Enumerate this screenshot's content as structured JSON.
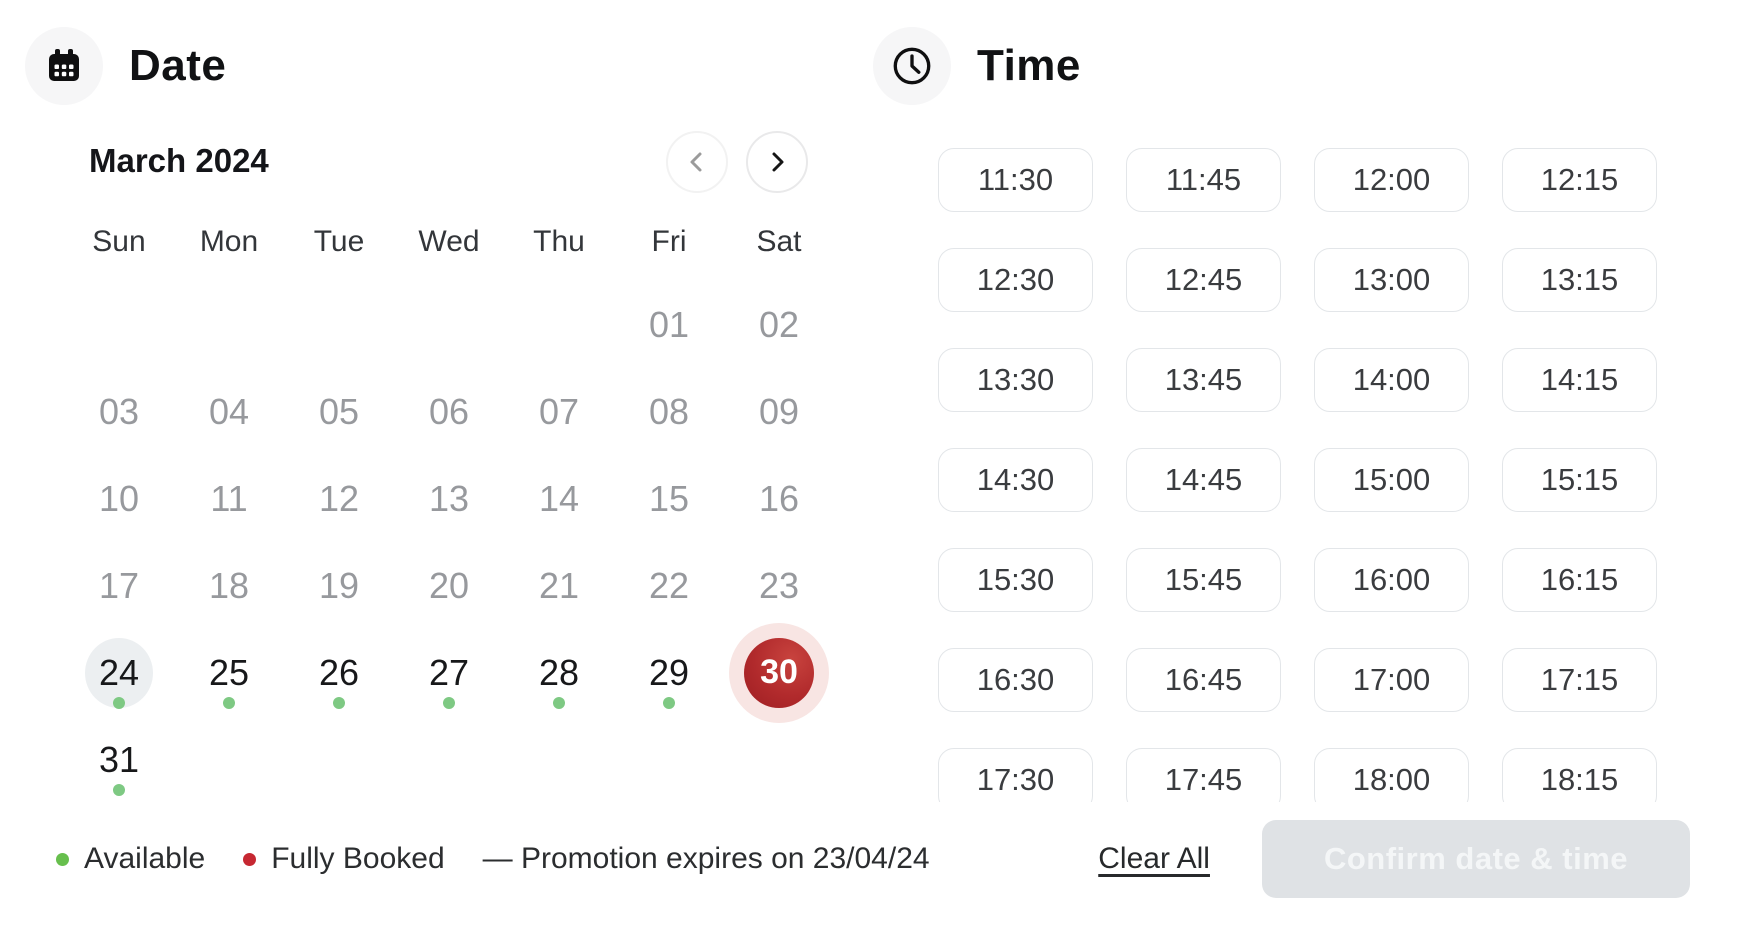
{
  "date_panel": {
    "title": "Date",
    "month_label": "March 2024",
    "weekdays": [
      "Sun",
      "Mon",
      "Tue",
      "Wed",
      "Thu",
      "Fri",
      "Sat"
    ],
    "cells": [
      {
        "day": "",
        "type": "empty"
      },
      {
        "day": "",
        "type": "empty"
      },
      {
        "day": "",
        "type": "empty"
      },
      {
        "day": "",
        "type": "empty"
      },
      {
        "day": "",
        "type": "empty"
      },
      {
        "day": "01",
        "type": "disabled"
      },
      {
        "day": "02",
        "type": "disabled"
      },
      {
        "day": "03",
        "type": "disabled"
      },
      {
        "day": "04",
        "type": "disabled"
      },
      {
        "day": "05",
        "type": "disabled"
      },
      {
        "day": "06",
        "type": "disabled"
      },
      {
        "day": "07",
        "type": "disabled"
      },
      {
        "day": "08",
        "type": "disabled"
      },
      {
        "day": "09",
        "type": "disabled"
      },
      {
        "day": "10",
        "type": "disabled"
      },
      {
        "day": "11",
        "type": "disabled"
      },
      {
        "day": "12",
        "type": "disabled"
      },
      {
        "day": "13",
        "type": "disabled"
      },
      {
        "day": "14",
        "type": "disabled"
      },
      {
        "day": "15",
        "type": "disabled"
      },
      {
        "day": "16",
        "type": "disabled"
      },
      {
        "day": "17",
        "type": "disabled"
      },
      {
        "day": "18",
        "type": "disabled"
      },
      {
        "day": "19",
        "type": "disabled"
      },
      {
        "day": "20",
        "type": "disabled"
      },
      {
        "day": "21",
        "type": "disabled"
      },
      {
        "day": "22",
        "type": "disabled"
      },
      {
        "day": "23",
        "type": "disabled"
      },
      {
        "day": "24",
        "type": "today",
        "dot": true
      },
      {
        "day": "25",
        "type": "active",
        "dot": true
      },
      {
        "day": "26",
        "type": "active",
        "dot": true
      },
      {
        "day": "27",
        "type": "active",
        "dot": true
      },
      {
        "day": "28",
        "type": "active",
        "dot": true
      },
      {
        "day": "29",
        "type": "active",
        "dot": true
      },
      {
        "day": "30",
        "type": "selected",
        "dot": false
      },
      {
        "day": "31",
        "type": "active",
        "dot": true
      },
      {
        "day": "",
        "type": "empty"
      },
      {
        "day": "",
        "type": "empty"
      },
      {
        "day": "",
        "type": "empty"
      },
      {
        "day": "",
        "type": "empty"
      },
      {
        "day": "",
        "type": "empty"
      },
      {
        "day": "",
        "type": "empty"
      }
    ],
    "selected_day": "30",
    "today_day": "24"
  },
  "time_panel": {
    "title": "Time",
    "slots": [
      "11:30",
      "11:45",
      "12:00",
      "12:15",
      "12:30",
      "12:45",
      "13:00",
      "13:15",
      "13:30",
      "13:45",
      "14:00",
      "14:15",
      "14:30",
      "14:45",
      "15:00",
      "15:15",
      "15:30",
      "15:45",
      "16:00",
      "16:15",
      "16:30",
      "16:45",
      "17:00",
      "17:15",
      "17:30",
      "17:45",
      "18:00",
      "18:15"
    ]
  },
  "footer": {
    "legend": [
      {
        "label": "Available",
        "color": "#67bf4d"
      },
      {
        "label": "Fully Booked",
        "color": "#c62832"
      }
    ],
    "promo_note": "— Promotion expires on 23/04/24",
    "clear_all_label": "Clear All",
    "confirm_label": "Confirm date & time"
  },
  "colors": {
    "selected_red": "#b02a2b",
    "selected_halo": "#f8e5e3",
    "available_dot_green": "#7ec983",
    "legend_green": "#67bf4d",
    "legend_red": "#c62832",
    "today_bg": "#eceff1",
    "disabled_day_gray": "#97999d",
    "slot_border": "#e3e6e9",
    "confirm_disabled_bg": "#dfe2e5"
  }
}
